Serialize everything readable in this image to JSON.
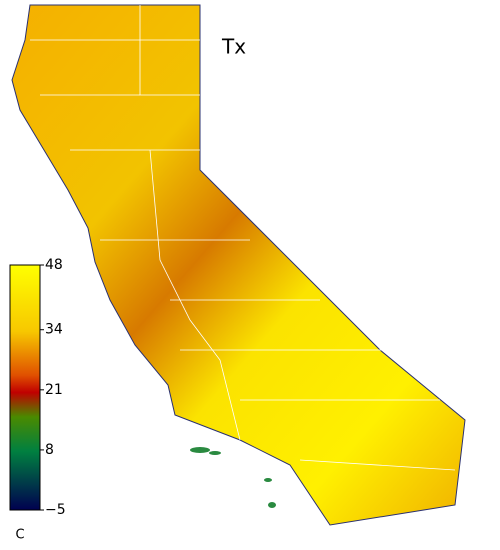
{
  "title": "Tx",
  "colorbar": {
    "unit": "C",
    "lim": [
      -5,
      48
    ],
    "ticks": [
      48,
      34,
      21,
      8,
      {
        "value": -5,
        "label": "−5"
      }
    ]
  }
}
